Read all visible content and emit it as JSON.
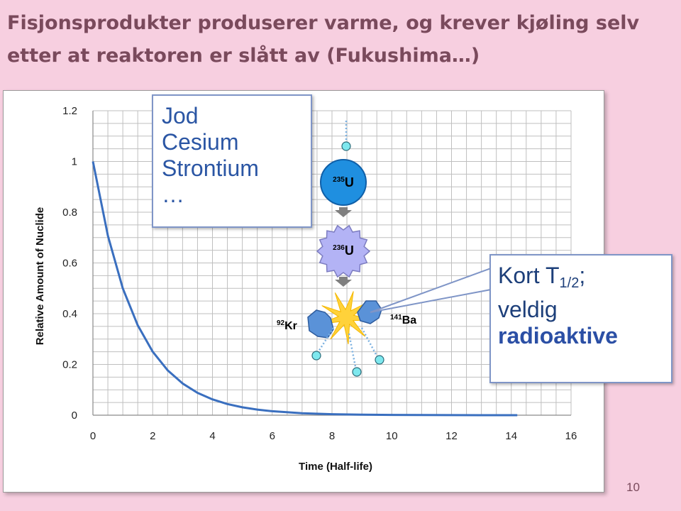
{
  "slide": {
    "title": "Fisjonsprodukter produserer varme, og krever kjøling selv etter at reaktoren er slått av (Fukushima…)",
    "page_number": "10"
  },
  "nuclides_box": {
    "items": [
      "Jod",
      "Cesium",
      "Strontium",
      "…"
    ]
  },
  "callout": {
    "line1_prefix": "Kort T",
    "line1_sub": "1/2",
    "line1_suffix": ";",
    "line2": "veldig",
    "line3": "radioaktive"
  },
  "fission_diagram": {
    "u235_label": "U",
    "u235_mass": "235",
    "u236_label": "U",
    "u236_mass": "236",
    "kr_label": "Kr",
    "kr_mass": "92",
    "ba_label": "Ba",
    "ba_mass": "141",
    "colors": {
      "u235": "#1f8fe0",
      "u236": "#b3b3f5",
      "fragment": "#5a92d8",
      "flash": "#ffd23a",
      "neutron": "#7ee8ee",
      "arrow": "#7f7f7f"
    }
  },
  "chart_data": {
    "type": "line",
    "title": "",
    "xlabel": "Time (Half-life)",
    "ylabel": "Relative Amount of Nuclide",
    "xlim": [
      0,
      16
    ],
    "ylim": [
      0,
      1.2
    ],
    "xticks": [
      "0",
      "2",
      "4",
      "6",
      "8",
      "10",
      "12",
      "14",
      "16"
    ],
    "yticks": [
      "0",
      "0.2",
      "0.4",
      "0.6",
      "0.8",
      "1",
      "1.2"
    ],
    "grid": true,
    "line_color": "#3a6fbf",
    "series": [
      {
        "x": [
          0,
          0.5,
          1,
          1.5,
          2,
          2.5,
          3,
          3.5,
          4,
          4.5,
          5,
          5.5,
          6,
          7,
          8,
          9,
          10,
          11,
          12,
          13,
          14.2
        ],
        "values": [
          1,
          0.707,
          0.5,
          0.354,
          0.25,
          0.177,
          0.125,
          0.088,
          0.0625,
          0.044,
          0.031,
          0.022,
          0.0156,
          0.0078,
          0.0039,
          0.002,
          0.001,
          0.0005,
          0.0002,
          0.0001,
          0.0001
        ]
      }
    ]
  }
}
